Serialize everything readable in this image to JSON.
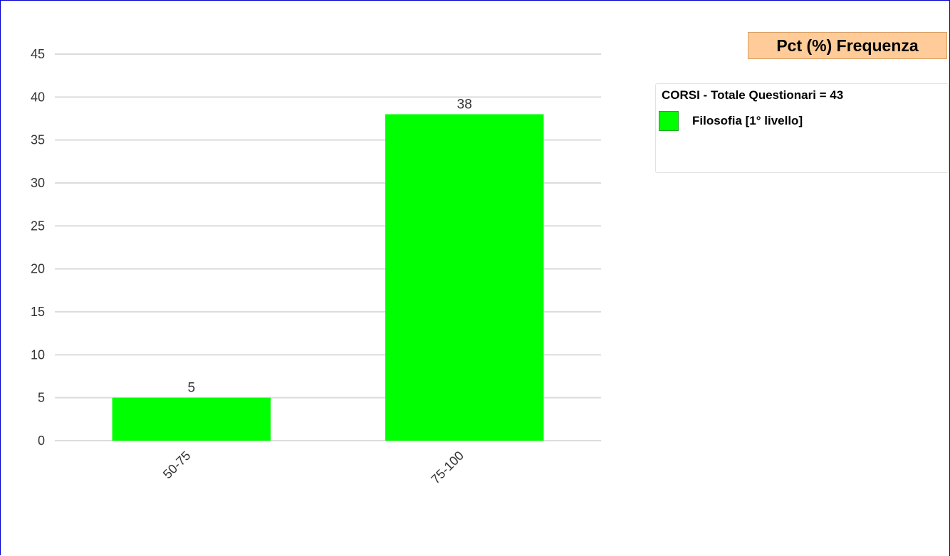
{
  "chart_title": "Pct (%) Frequenza",
  "legend": {
    "header": "CORSI - Totale Questionari = 43",
    "items": [
      {
        "label": "Filosofia [1° livello]",
        "color": "#00ff00"
      }
    ]
  },
  "chart_data": {
    "type": "bar",
    "categories": [
      "50-75",
      "75-100"
    ],
    "series": [
      {
        "name": "Filosofia [1° livello]",
        "values": [
          5,
          38
        ],
        "color": "#00ff00"
      }
    ],
    "data_labels": [
      "5",
      "38"
    ],
    "yticks": [
      0,
      5,
      10,
      15,
      20,
      25,
      30,
      35,
      40,
      45
    ],
    "ylim": [
      0,
      45
    ],
    "grid": true,
    "legend_position": "right",
    "xlabel": "",
    "ylabel": ""
  }
}
